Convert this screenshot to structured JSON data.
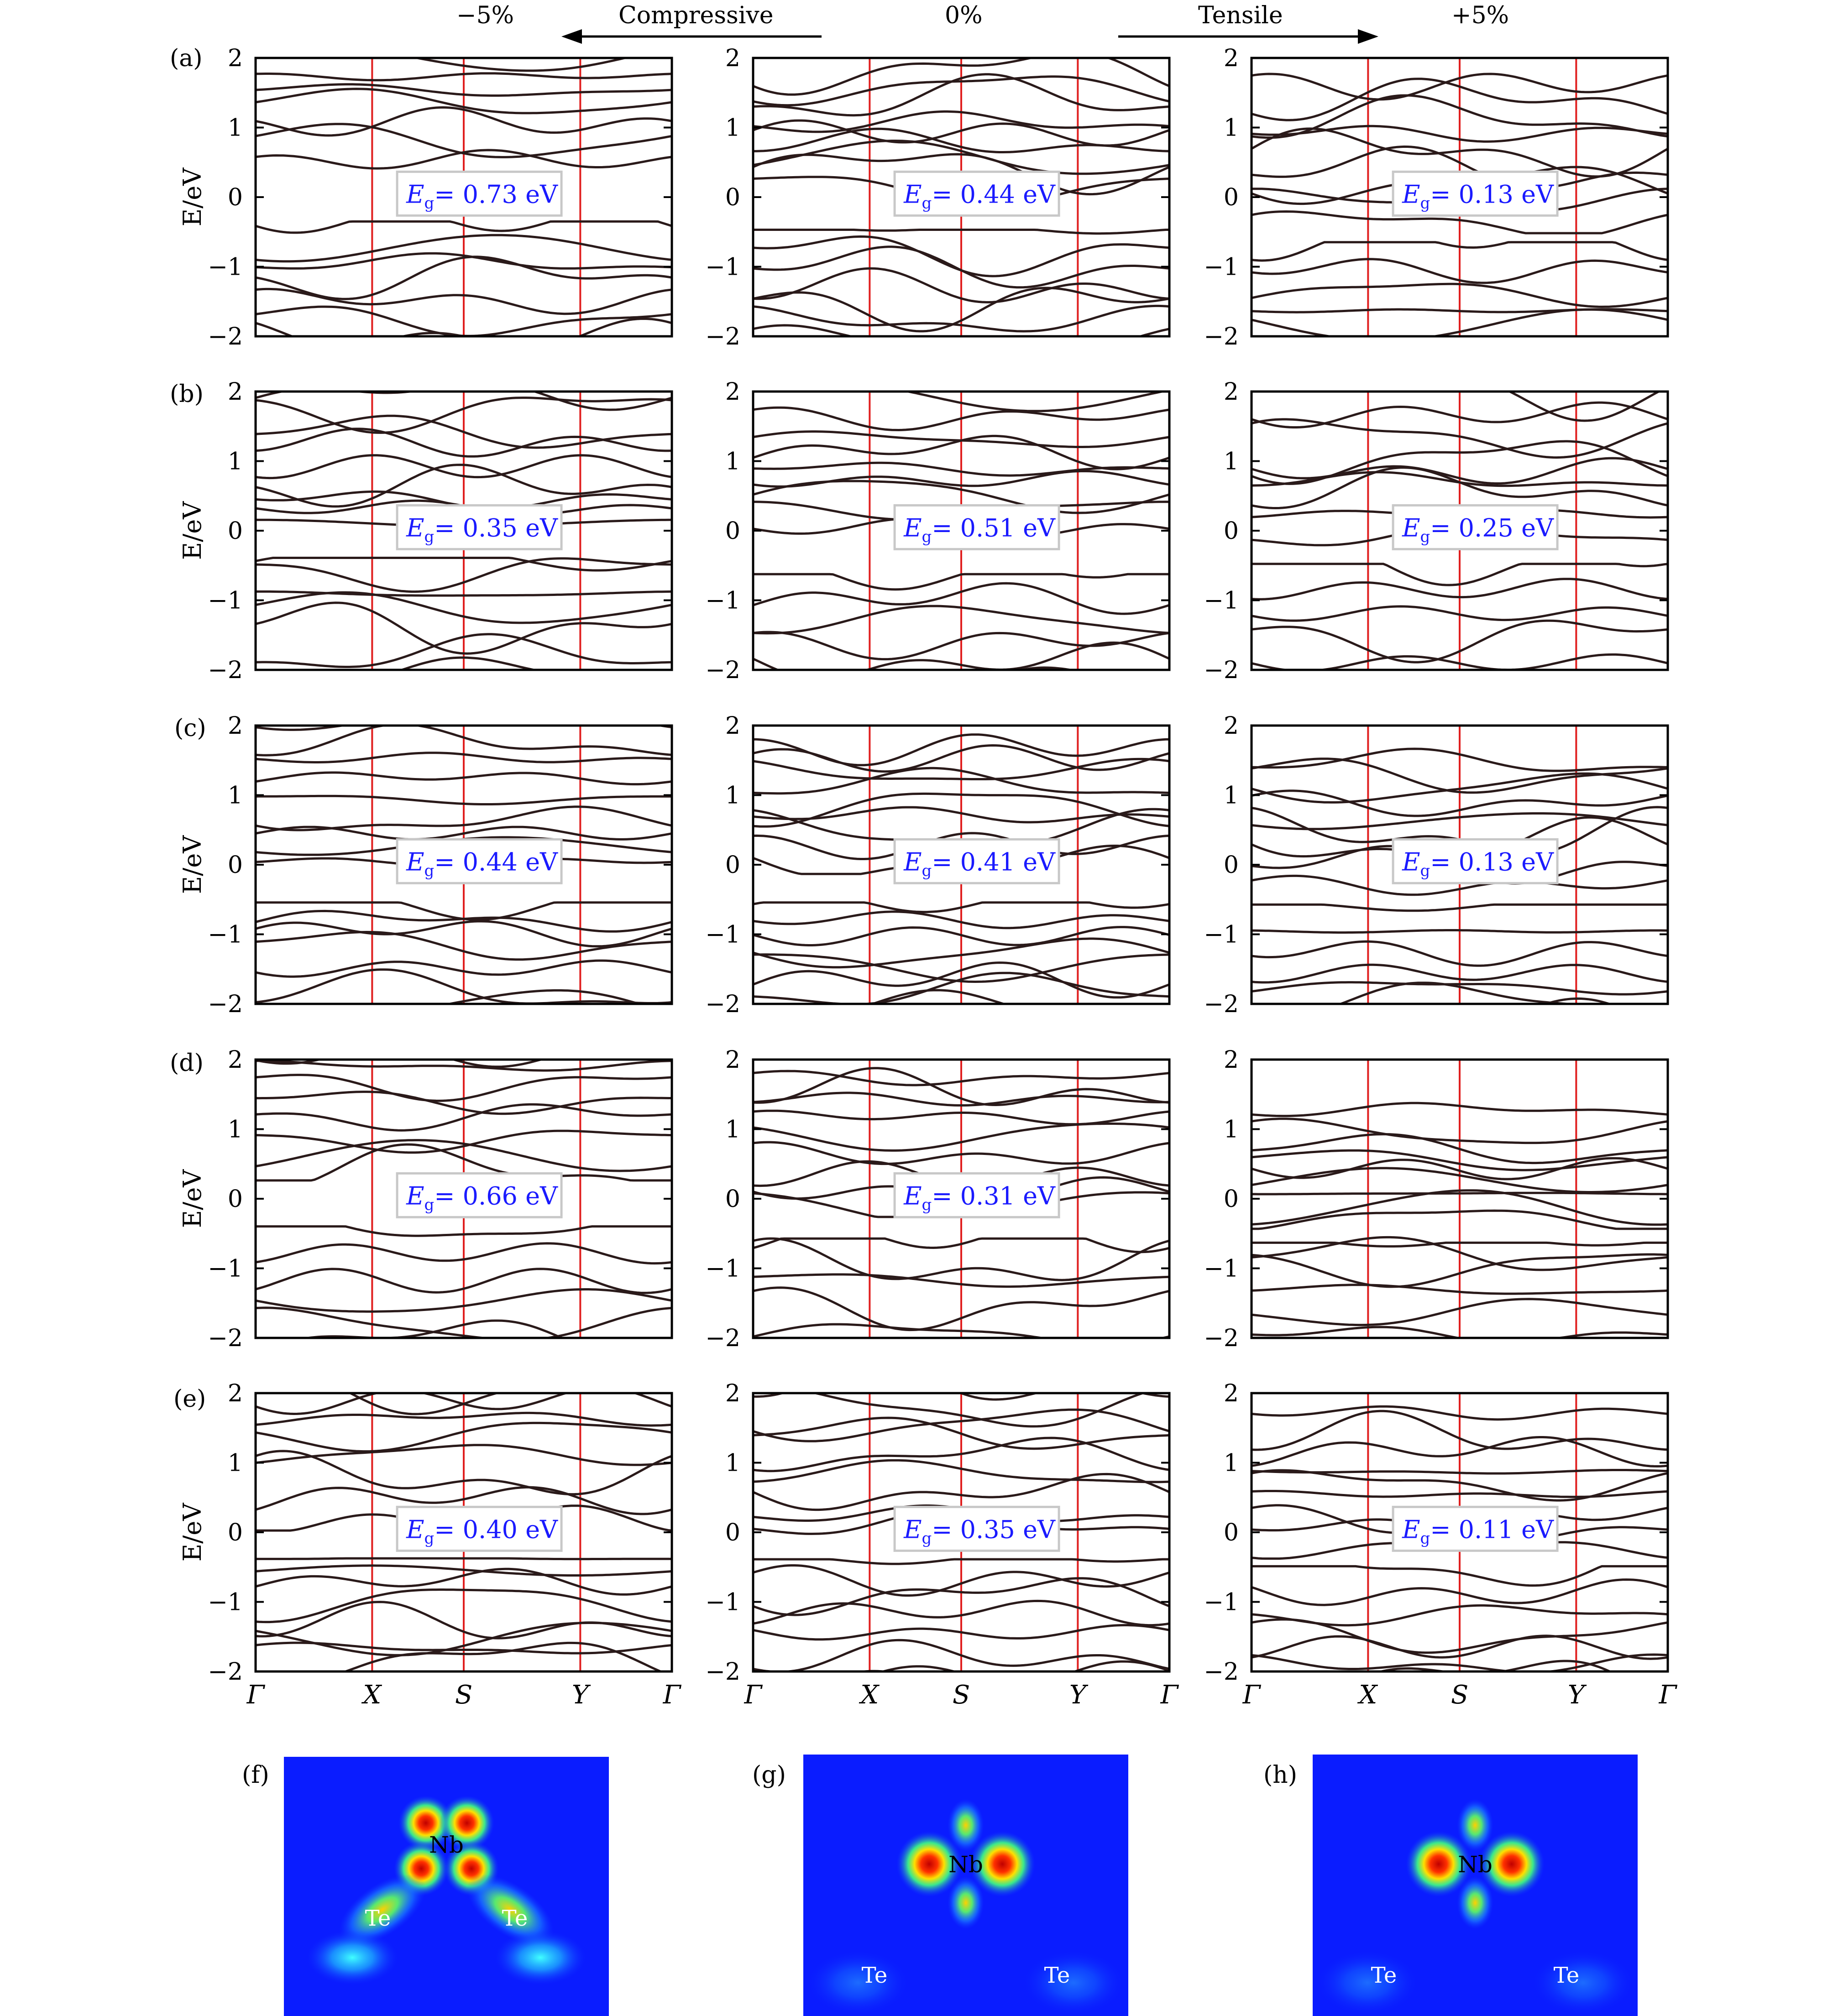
{
  "header": {
    "compressive_pct": "−5%",
    "zero_pct": "0%",
    "tensile_pct": "+5%",
    "compressive_label": "Compressive",
    "tensile_label": "Tensile"
  },
  "row_labels": [
    "(a)",
    "(b)",
    "(c)",
    "(d)",
    "(e)"
  ],
  "map_labels": [
    "(f)",
    "(g)",
    "(h)"
  ],
  "atoms": {
    "nb": "Nb",
    "te": "Te"
  },
  "colors": {
    "band": "#2a1a1a",
    "high_symmetry_line": "#e02020",
    "gap_text": "#1a1aff",
    "frame": "#000000"
  },
  "chart_data": {
    "type": "line",
    "description_axes": {
      "ylabel": "E/eV",
      "ylim": [
        -2,
        2
      ],
      "yticks": [
        "−2",
        "−1",
        "0",
        "1",
        "2"
      ],
      "kpath": [
        "Γ",
        "X",
        "S",
        "Y",
        "Γ"
      ],
      "kpath_positions": [
        0,
        0.28,
        0.5,
        0.78,
        1.0
      ]
    },
    "panels": [
      {
        "row": "a",
        "strain": "−5%",
        "gap_label": "E",
        "gap_sub": "g",
        "gap_value": "= 0.73 eV",
        "gap_ev": 0.73
      },
      {
        "row": "a",
        "strain": "0%",
        "gap_label": "E",
        "gap_sub": "g",
        "gap_value": "= 0.44 eV",
        "gap_ev": 0.44
      },
      {
        "row": "a",
        "strain": "+5%",
        "gap_label": "E",
        "gap_sub": "g",
        "gap_value": "= 0.13 eV",
        "gap_ev": 0.13
      },
      {
        "row": "b",
        "strain": "−5%",
        "gap_label": "E",
        "gap_sub": "g",
        "gap_value": "= 0.35 eV",
        "gap_ev": 0.35
      },
      {
        "row": "b",
        "strain": "0%",
        "gap_label": "E",
        "gap_sub": "g",
        "gap_value": "= 0.51 eV",
        "gap_ev": 0.51
      },
      {
        "row": "b",
        "strain": "+5%",
        "gap_label": "E",
        "gap_sub": "g",
        "gap_value": "= 0.25 eV",
        "gap_ev": 0.25
      },
      {
        "row": "c",
        "strain": "−5%",
        "gap_label": "E",
        "gap_sub": "g",
        "gap_value": "= 0.44 eV",
        "gap_ev": 0.44
      },
      {
        "row": "c",
        "strain": "0%",
        "gap_label": "E",
        "gap_sub": "g",
        "gap_value": "= 0.41 eV",
        "gap_ev": 0.41
      },
      {
        "row": "c",
        "strain": "+5%",
        "gap_label": "E",
        "gap_sub": "g",
        "gap_value": "= 0.13 eV",
        "gap_ev": 0.13
      },
      {
        "row": "d",
        "strain": "−5%",
        "gap_label": "E",
        "gap_sub": "g",
        "gap_value": "= 0.66 eV",
        "gap_ev": 0.66
      },
      {
        "row": "d",
        "strain": "0%",
        "gap_label": "E",
        "gap_sub": "g",
        "gap_value": "= 0.31 eV",
        "gap_ev": 0.31
      },
      {
        "row": "d",
        "strain": "+5%",
        "gap_label": "",
        "gap_sub": "",
        "gap_value": "",
        "gap_ev": 0
      },
      {
        "row": "e",
        "strain": "−5%",
        "gap_label": "E",
        "gap_sub": "g",
        "gap_value": "= 0.40 eV",
        "gap_ev": 0.4
      },
      {
        "row": "e",
        "strain": "0%",
        "gap_label": "E",
        "gap_sub": "g",
        "gap_value": "= 0.35 eV",
        "gap_ev": 0.35
      },
      {
        "row": "e",
        "strain": "+5%",
        "gap_label": "E",
        "gap_sub": "g",
        "gap_value": "= 0.11 eV",
        "gap_ev": 0.11
      }
    ]
  }
}
